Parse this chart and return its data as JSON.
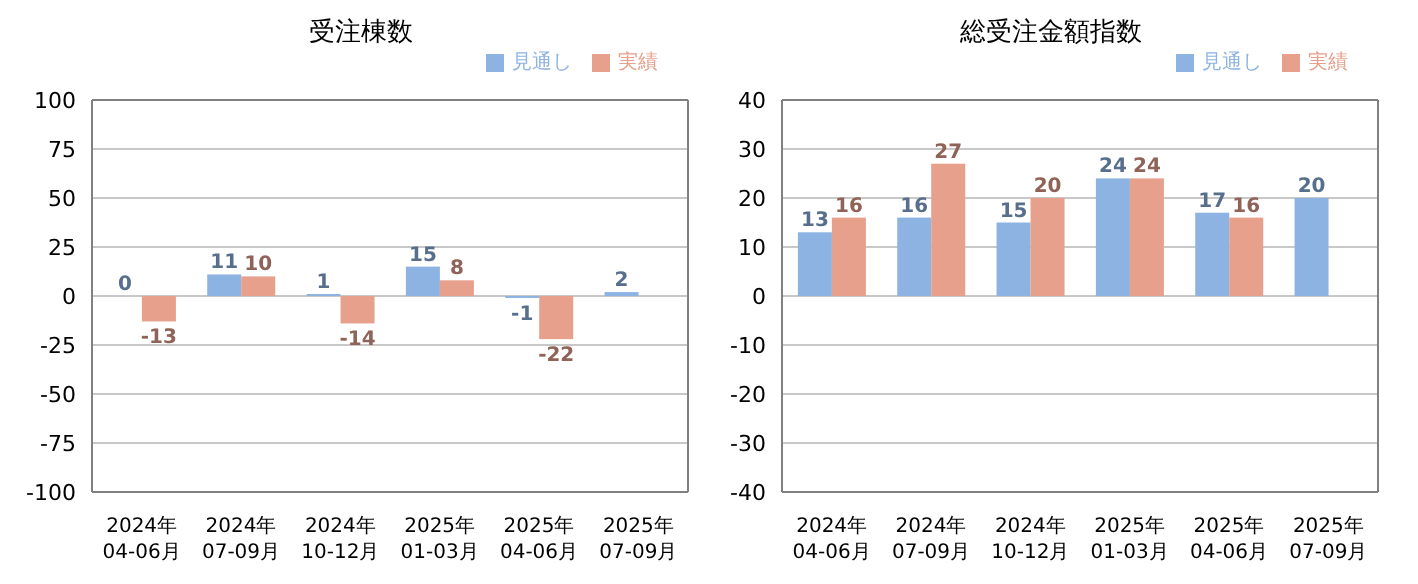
{
  "chart_data": [
    {
      "type": "bar",
      "title": "受注棟数",
      "categories": [
        "2024年 04-06月",
        "2024年 07-09月",
        "2024年 10-12月",
        "2025年 01-03月",
        "2025年 04-06月",
        "2025年 07-09月"
      ],
      "series": [
        {
          "name": "見通し",
          "color": "#8db3e2",
          "values": [
            0,
            11,
            1,
            15,
            -1,
            2
          ]
        },
        {
          "name": "実績",
          "color": "#e6a08c",
          "values": [
            -13,
            10,
            -14,
            8,
            -22,
            null
          ]
        }
      ],
      "ylim": [
        -100,
        100
      ],
      "yticks": [
        -100,
        -75,
        -50,
        -25,
        0,
        25,
        50,
        75,
        100
      ],
      "grid": "y",
      "legend": "top right",
      "data_labels": true
    },
    {
      "type": "bar",
      "title": "総受注金額指数",
      "categories": [
        "2024年 04-06月",
        "2024年 07-09月",
        "2024年 10-12月",
        "2025年 01-03月",
        "2025年 04-06月",
        "2025年 07-09月"
      ],
      "series": [
        {
          "name": "見通し",
          "color": "#8db3e2",
          "values": [
            13,
            16,
            15,
            24,
            17,
            20
          ]
        },
        {
          "name": "実績",
          "color": "#e6a08c",
          "values": [
            16,
            27,
            20,
            24,
            16,
            null
          ]
        }
      ],
      "ylim": [
        -40,
        40
      ],
      "yticks": [
        -40,
        -30,
        -20,
        -10,
        0,
        10,
        20,
        30,
        40
      ],
      "grid": "y",
      "legend": "top right",
      "data_labels": true
    }
  ]
}
